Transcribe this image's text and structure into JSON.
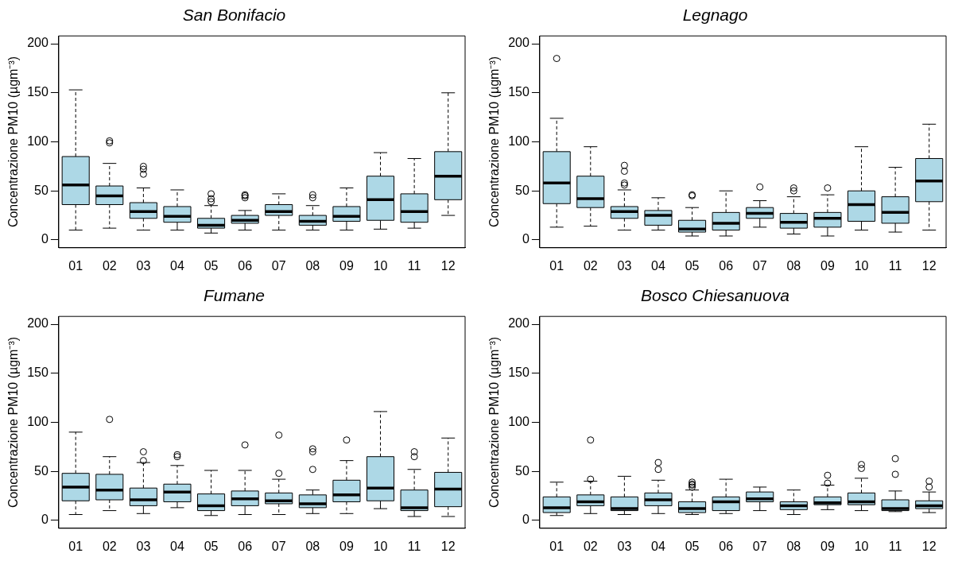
{
  "chart_data": [
    {
      "type": "box",
      "title": "San Bonifacio",
      "ylabel": "Concentrazione PM10 (µgm⁻³)",
      "categories": [
        "01",
        "02",
        "03",
        "04",
        "05",
        "06",
        "07",
        "08",
        "09",
        "10",
        "11",
        "12"
      ],
      "color": "#add8e6",
      "ylim": [
        -8,
        208
      ],
      "yticks": [
        0,
        50,
        100,
        150,
        200
      ],
      "grid": false,
      "legend": false,
      "boxes": [
        {
          "low": 10,
          "q1": 36,
          "median": 56,
          "q3": 85,
          "high": 153
        },
        {
          "low": 12,
          "q1": 36,
          "median": 45,
          "q3": 55,
          "high": 78,
          "outliers": [
            99,
            101
          ]
        },
        {
          "low": 10,
          "q1": 22,
          "median": 29,
          "q3": 38,
          "high": 53,
          "outliers": [
            67,
            72,
            75
          ]
        },
        {
          "low": 10,
          "q1": 18,
          "median": 24,
          "q3": 34,
          "high": 51
        },
        {
          "low": 7,
          "q1": 12,
          "median": 15,
          "q3": 22,
          "high": 35,
          "outliers": [
            39,
            42,
            47
          ]
        },
        {
          "low": 10,
          "q1": 17,
          "median": 20,
          "q3": 25,
          "high": 30,
          "outliers": [
            43,
            45,
            46
          ]
        },
        {
          "low": 10,
          "q1": 25,
          "median": 29,
          "q3": 36,
          "high": 47
        },
        {
          "low": 10,
          "q1": 15,
          "median": 19,
          "q3": 25,
          "high": 35,
          "outliers": [
            43,
            46
          ]
        },
        {
          "low": 10,
          "q1": 19,
          "median": 24,
          "q3": 34,
          "high": 53
        },
        {
          "low": 11,
          "q1": 20,
          "median": 41,
          "q3": 65,
          "high": 89
        },
        {
          "low": 12,
          "q1": 18,
          "median": 29,
          "q3": 47,
          "high": 83
        },
        {
          "low": 25,
          "q1": 41,
          "median": 65,
          "q3": 90,
          "high": 150
        }
      ]
    },
    {
      "type": "box",
      "title": "Legnago",
      "ylabel": "Concentrazione PM10 (µgm⁻³)",
      "categories": [
        "01",
        "02",
        "03",
        "04",
        "05",
        "06",
        "07",
        "08",
        "09",
        "10",
        "11",
        "12"
      ],
      "color": "#add8e6",
      "ylim": [
        -8,
        208
      ],
      "yticks": [
        0,
        50,
        100,
        150,
        200
      ],
      "grid": false,
      "legend": false,
      "boxes": [
        {
          "low": 13,
          "q1": 37,
          "median": 58,
          "q3": 90,
          "high": 124,
          "outliers": [
            185
          ]
        },
        {
          "low": 14,
          "q1": 33,
          "median": 42,
          "q3": 65,
          "high": 95
        },
        {
          "low": 10,
          "q1": 22,
          "median": 29,
          "q3": 34,
          "high": 51,
          "outliers": [
            56,
            58,
            70,
            76
          ]
        },
        {
          "low": 10,
          "q1": 15,
          "median": 25,
          "q3": 30,
          "high": 43
        },
        {
          "low": 4,
          "q1": 8,
          "median": 11,
          "q3": 20,
          "high": 33,
          "outliers": [
            45,
            46
          ]
        },
        {
          "low": 4,
          "q1": 10,
          "median": 17,
          "q3": 28,
          "high": 50
        },
        {
          "low": 13,
          "q1": 22,
          "median": 27,
          "q3": 33,
          "high": 40,
          "outliers": [
            54
          ]
        },
        {
          "low": 6,
          "q1": 12,
          "median": 18,
          "q3": 27,
          "high": 44,
          "outliers": [
            50,
            53
          ]
        },
        {
          "low": 4,
          "q1": 13,
          "median": 22,
          "q3": 28,
          "high": 46,
          "outliers": [
            53
          ]
        },
        {
          "low": 10,
          "q1": 19,
          "median": 36,
          "q3": 50,
          "high": 95
        },
        {
          "low": 8,
          "q1": 17,
          "median": 28,
          "q3": 44,
          "high": 74
        },
        {
          "low": 10,
          "q1": 39,
          "median": 60,
          "q3": 83,
          "high": 118
        }
      ]
    },
    {
      "type": "box",
      "title": "Fumane",
      "ylabel": "Concentrazione PM10 (µgm⁻³)",
      "categories": [
        "01",
        "02",
        "03",
        "04",
        "05",
        "06",
        "07",
        "08",
        "09",
        "10",
        "11",
        "12"
      ],
      "color": "#add8e6",
      "ylim": [
        -8,
        208
      ],
      "yticks": [
        0,
        50,
        100,
        150,
        200
      ],
      "grid": false,
      "legend": false,
      "boxes": [
        {
          "low": 6,
          "q1": 20,
          "median": 34,
          "q3": 48,
          "high": 90
        },
        {
          "low": 10,
          "q1": 21,
          "median": 31,
          "q3": 47,
          "high": 65,
          "outliers": [
            103
          ]
        },
        {
          "low": 7,
          "q1": 15,
          "median": 21,
          "q3": 33,
          "high": 59,
          "outliers": [
            61,
            70
          ]
        },
        {
          "low": 13,
          "q1": 19,
          "median": 29,
          "q3": 37,
          "high": 56,
          "outliers": [
            65,
            67
          ]
        },
        {
          "low": 5,
          "q1": 10,
          "median": 15,
          "q3": 27,
          "high": 51
        },
        {
          "low": 6,
          "q1": 15,
          "median": 22,
          "q3": 30,
          "high": 51,
          "outliers": [
            77
          ]
        },
        {
          "low": 6,
          "q1": 17,
          "median": 20,
          "q3": 28,
          "high": 42,
          "outliers": [
            48,
            87
          ]
        },
        {
          "low": 7,
          "q1": 13,
          "median": 17,
          "q3": 26,
          "high": 31,
          "outliers": [
            52,
            70,
            73
          ]
        },
        {
          "low": 7,
          "q1": 19,
          "median": 26,
          "q3": 41,
          "high": 61,
          "outliers": [
            82
          ]
        },
        {
          "low": 12,
          "q1": 20,
          "median": 33,
          "q3": 65,
          "high": 111
        },
        {
          "low": 4,
          "q1": 10,
          "median": 13,
          "q3": 31,
          "high": 52,
          "outliers": [
            65,
            70
          ]
        },
        {
          "low": 4,
          "q1": 14,
          "median": 32,
          "q3": 49,
          "high": 84
        }
      ]
    },
    {
      "type": "box",
      "title": "Bosco Chiesanuova",
      "ylabel": "Concentrazione PM10 (µgm⁻³)",
      "categories": [
        "01",
        "02",
        "03",
        "04",
        "05",
        "06",
        "07",
        "08",
        "09",
        "10",
        "11",
        "12"
      ],
      "color": "#add8e6",
      "ylim": [
        -8,
        208
      ],
      "yticks": [
        0,
        50,
        100,
        150,
        200
      ],
      "grid": false,
      "legend": false,
      "boxes": [
        {
          "low": 5,
          "q1": 8,
          "median": 13,
          "q3": 24,
          "high": 39
        },
        {
          "low": 7,
          "q1": 15,
          "median": 19,
          "q3": 26,
          "high": 40,
          "outliers": [
            42,
            82
          ]
        },
        {
          "low": 6,
          "q1": 10,
          "median": 12,
          "q3": 24,
          "high": 45
        },
        {
          "low": 7,
          "q1": 15,
          "median": 21,
          "q3": 28,
          "high": 41,
          "outliers": [
            52,
            59
          ]
        },
        {
          "low": 6,
          "q1": 8,
          "median": 12,
          "q3": 19,
          "high": 31,
          "outliers": [
            34,
            36,
            37,
            39
          ]
        },
        {
          "low": 7,
          "q1": 10,
          "median": 19,
          "q3": 24,
          "high": 42
        },
        {
          "low": 10,
          "q1": 19,
          "median": 22,
          "q3": 29,
          "high": 34
        },
        {
          "low": 6,
          "q1": 11,
          "median": 15,
          "q3": 19,
          "high": 31
        },
        {
          "low": 11,
          "q1": 16,
          "median": 18,
          "q3": 24,
          "high": 36,
          "outliers": [
            38,
            46
          ]
        },
        {
          "low": 10,
          "q1": 16,
          "median": 19,
          "q3": 28,
          "high": 43,
          "outliers": [
            53,
            57
          ]
        },
        {
          "low": 9,
          "q1": 10,
          "median": 12,
          "q3": 21,
          "high": 30,
          "outliers": [
            47,
            63
          ]
        },
        {
          "low": 8,
          "q1": 12,
          "median": 15,
          "q3": 20,
          "high": 29,
          "outliers": [
            34,
            40
          ]
        }
      ]
    }
  ]
}
